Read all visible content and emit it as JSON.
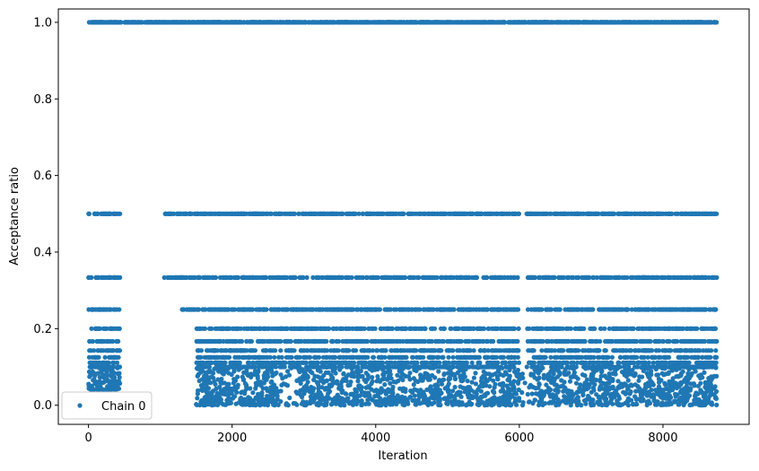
{
  "chart_data": {
    "type": "scatter",
    "title": "",
    "xlabel": "Iteration",
    "ylabel": "Acceptance ratio",
    "xlim": [
      -420,
      9200
    ],
    "ylim": [
      -0.05,
      1.035
    ],
    "xticks": [
      0,
      2000,
      4000,
      6000,
      8000
    ],
    "xtick_labels": [
      "0",
      "2000",
      "4000",
      "6000",
      "8000"
    ],
    "yticks": [
      0.0,
      0.2,
      0.4,
      0.6,
      0.8,
      1.0
    ],
    "ytick_labels": [
      "0.0",
      "0.2",
      "0.4",
      "0.6",
      "0.8",
      "1.0"
    ],
    "grid": false,
    "legend": {
      "position": "lower-left",
      "entries": [
        "Chain 0"
      ]
    },
    "series": [
      {
        "name": "Chain 0",
        "color": "#1f77b4",
        "marker": "circle",
        "description_levels": [
          1.0,
          0.5,
          0.3333,
          0.25,
          0.2,
          0.1667,
          0.1429,
          0.125,
          0.1111,
          0.1
        ],
        "x_range": [
          0,
          8750
        ],
        "segments": [
          {
            "x_start": 0,
            "x_end": 440,
            "levels": [
              1.0,
              0.5,
              0.3333,
              0.25,
              0.2,
              0.1667,
              0.1429,
              0.125,
              0.1111,
              0.1
            ],
            "dense_low_band": [
              0.04,
              0.1
            ]
          },
          {
            "x_start": 440,
            "x_end": 1050,
            "levels": [
              1.0
            ]
          },
          {
            "x_start": 1050,
            "x_end": 1300,
            "levels": [
              1.0,
              0.5,
              0.3333
            ]
          },
          {
            "x_start": 1300,
            "x_end": 1500,
            "levels": [
              1.0,
              0.5,
              0.3333,
              0.25
            ]
          },
          {
            "x_start": 1500,
            "x_end": 8750,
            "levels": [
              1.0,
              0.5,
              0.3333,
              0.25,
              0.2,
              0.1667,
              0.1429,
              0.125,
              0.1111,
              0.1
            ],
            "dense_low_band": [
              0.0,
              0.1
            ]
          }
        ]
      }
    ]
  }
}
